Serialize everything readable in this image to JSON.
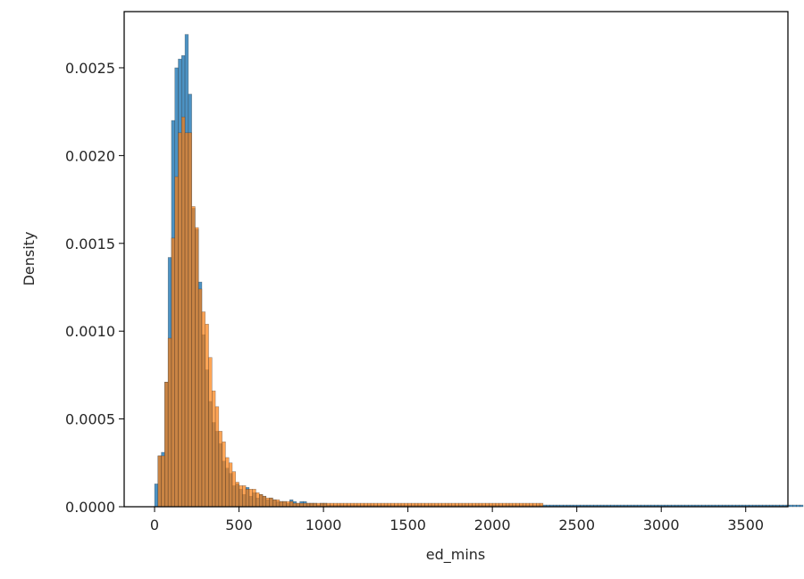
{
  "chart_data": {
    "type": "bar",
    "title": "",
    "xlabel": "ed_mins",
    "ylabel": "Density",
    "xlim": [
      -180,
      3750
    ],
    "ylim": [
      0,
      0.00282
    ],
    "xticks": [
      0,
      500,
      1000,
      1500,
      2000,
      2500,
      3000,
      3500
    ],
    "xtick_labels": [
      "0",
      "500",
      "1000",
      "1500",
      "2000",
      "2500",
      "3000",
      "3500"
    ],
    "yticks": [
      0,
      0.0005,
      0.001,
      0.0015,
      0.002,
      0.0025
    ],
    "ytick_labels": [
      "0.0000",
      "0.0005",
      "0.0010",
      "0.0015",
      "0.0020",
      "0.0025"
    ],
    "grid": false,
    "legend": null,
    "series": [
      {
        "color": "#1f77b4",
        "alpha": 0.8,
        "bin_width": 20,
        "x_start": 0,
        "values": [
          0.00013,
          0.00029,
          0.00031,
          0.00071,
          0.00142,
          0.0022,
          0.0025,
          0.00255,
          0.00257,
          0.00269,
          0.00235,
          0.0017,
          0.00158,
          0.00128,
          0.00098,
          0.00078,
          0.0006,
          0.00048,
          0.00043,
          0.00036,
          0.00026,
          0.00022,
          0.00019,
          0.00012,
          0.00013,
          0.0001,
          7e-05,
          0.00011,
          6e-05,
          8e-05,
          5e-05,
          7e-05,
          6e-05,
          4e-05,
          5e-05,
          4e-05,
          3e-05,
          3e-05,
          3e-05,
          2e-05,
          4e-05,
          3e-05,
          2e-05,
          3e-05,
          3e-05,
          2e-05,
          2e-05,
          2e-05,
          1e-05,
          2e-05,
          2e-05,
          1e-05,
          1e-05,
          1e-05,
          1e-05,
          1e-05,
          1e-05,
          1e-05,
          1e-05,
          1e-05,
          1e-05,
          1e-05,
          1e-05,
          1e-05,
          1e-05,
          1e-05,
          1e-05,
          1e-05,
          1e-05,
          1e-05,
          1e-05,
          1e-05,
          1e-05,
          1e-05,
          1e-05,
          1e-05,
          1e-05,
          1e-05,
          1e-05,
          1e-05,
          1e-05,
          1e-05,
          1e-05,
          1e-05,
          1e-05,
          1e-05,
          1e-05,
          1e-05,
          1e-05,
          1e-05,
          1e-05,
          1e-05,
          1e-05,
          1e-05,
          1e-05,
          1e-05,
          1e-05,
          1e-05,
          1e-05,
          1e-05,
          1e-05,
          1e-05,
          1e-05,
          1e-05,
          1e-05,
          1e-05,
          1e-05,
          1e-05,
          1e-05,
          1e-05,
          1e-05,
          1e-05,
          1e-05,
          1e-05,
          1e-05,
          1e-05,
          1e-05,
          1e-05,
          1e-05,
          1e-05,
          1e-05,
          1e-05,
          1e-05,
          1e-05,
          1e-05,
          1e-05,
          1e-05,
          1e-05,
          1e-05,
          1e-05,
          1e-05,
          1e-05,
          1e-05,
          1e-05,
          1e-05,
          1e-05,
          1e-05,
          1e-05,
          1e-05,
          1e-05,
          1e-05,
          1e-05,
          1e-05,
          1e-05,
          1e-05,
          1e-05,
          1e-05,
          1e-05,
          1e-05,
          1e-05,
          1e-05,
          1e-05,
          1e-05,
          1e-05,
          1e-05,
          1e-05,
          1e-05,
          1e-05,
          1e-05,
          1e-05,
          1e-05,
          1e-05,
          1e-05,
          1e-05,
          1e-05,
          1e-05,
          1e-05,
          1e-05,
          1e-05,
          1e-05,
          1e-05,
          1e-05,
          1e-05,
          1e-05,
          1e-05,
          1e-05,
          1e-05,
          1e-05,
          1e-05,
          1e-05,
          1e-05,
          1e-05,
          1e-05,
          1e-05,
          1e-05,
          1e-05,
          1e-05,
          1e-05,
          1e-05,
          1e-05,
          1e-05,
          1e-05
        ]
      },
      {
        "color": "#ff7f0e",
        "alpha": 0.7,
        "bin_width": 20,
        "x_start": 20,
        "values": [
          0.00029,
          0.00029,
          0.00071,
          0.00096,
          0.00153,
          0.00188,
          0.00213,
          0.00222,
          0.00213,
          0.00213,
          0.00171,
          0.00159,
          0.00124,
          0.00111,
          0.00104,
          0.00085,
          0.00066,
          0.00057,
          0.00043,
          0.00037,
          0.00028,
          0.00025,
          0.0002,
          0.00014,
          0.00012,
          0.00012,
          0.0001,
          0.0001,
          0.0001,
          8e-05,
          7e-05,
          6e-05,
          5e-05,
          5e-05,
          4e-05,
          4e-05,
          3e-05,
          3e-05,
          3e-05,
          3e-05,
          2e-05,
          2e-05,
          2e-05,
          2e-05,
          2e-05,
          2e-05,
          2e-05,
          2e-05,
          2e-05,
          2e-05,
          2e-05,
          2e-05,
          2e-05,
          2e-05,
          2e-05,
          2e-05,
          2e-05,
          2e-05,
          2e-05,
          2e-05,
          2e-05,
          2e-05,
          2e-05,
          2e-05,
          2e-05,
          2e-05,
          2e-05,
          2e-05,
          2e-05,
          2e-05,
          2e-05,
          2e-05,
          2e-05,
          2e-05,
          2e-05,
          2e-05,
          2e-05,
          2e-05,
          2e-05,
          2e-05,
          2e-05,
          2e-05,
          2e-05,
          2e-05,
          2e-05,
          2e-05,
          2e-05,
          2e-05,
          2e-05,
          2e-05,
          2e-05,
          2e-05,
          2e-05,
          2e-05,
          2e-05,
          2e-05,
          2e-05,
          2e-05,
          2e-05,
          2e-05,
          2e-05,
          2e-05,
          2e-05,
          2e-05,
          2e-05,
          2e-05,
          2e-05,
          2e-05,
          2e-05,
          2e-05,
          2e-05,
          2e-05,
          2e-05,
          2e-05
        ]
      }
    ]
  }
}
